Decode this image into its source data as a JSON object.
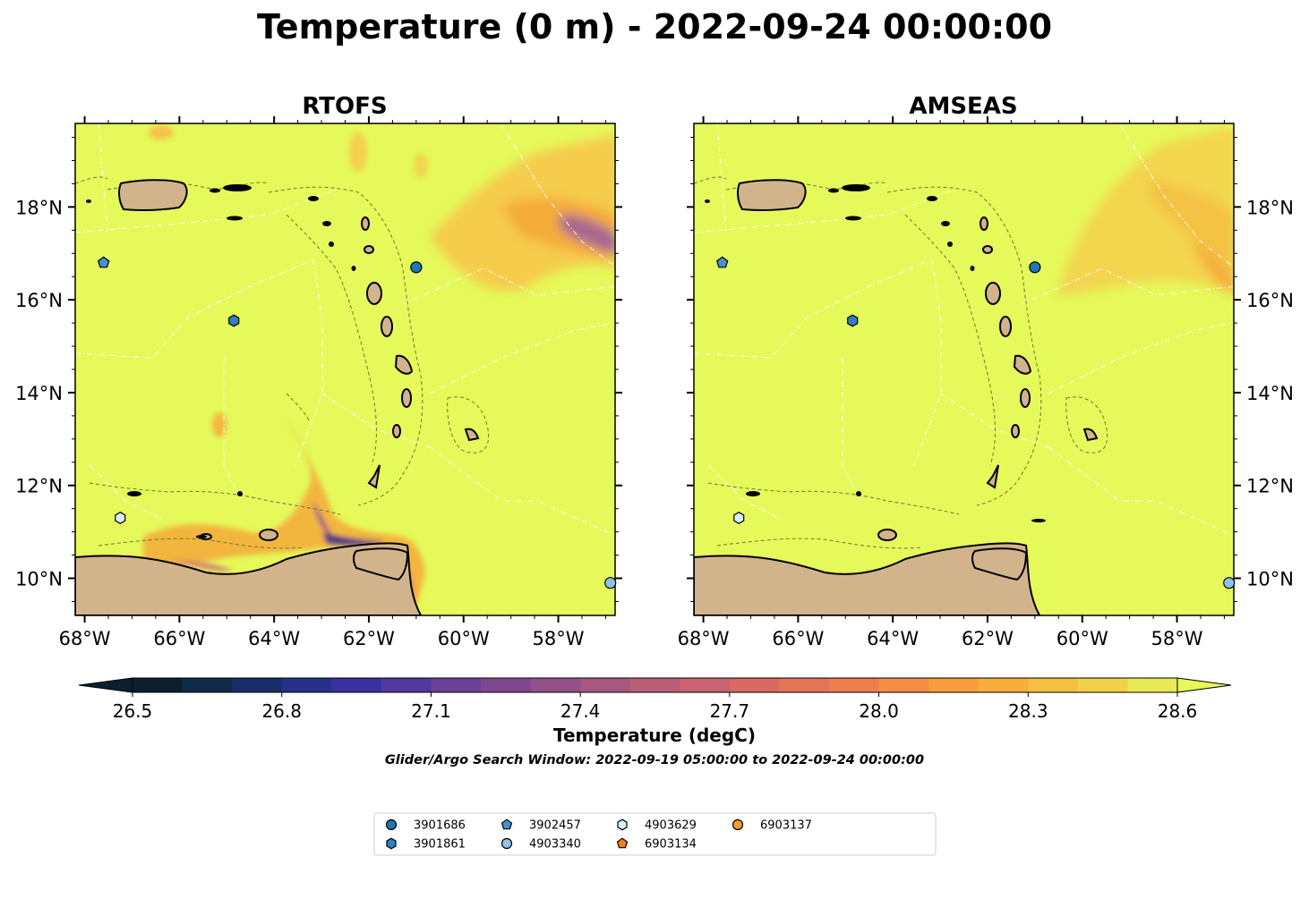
{
  "figure": {
    "title": "Temperature (0 m) - 2022-09-24 00:00:00",
    "search_window": "Glider/Argo Search Window: 2022-09-19 05:00:00 to 2022-09-24 00:00:00"
  },
  "panels": [
    {
      "title": "RTOFS"
    },
    {
      "title": "AMSEAS"
    }
  ],
  "axes": {
    "lon_labels": [
      "68°W",
      "66°W",
      "64°W",
      "62°W",
      "60°W",
      "58°W"
    ],
    "lat_labels": [
      "10°N",
      "12°N",
      "14°N",
      "16°N",
      "18°N"
    ],
    "lon_range": [
      -68.2,
      -56.8
    ],
    "lat_range": [
      9.2,
      19.8
    ]
  },
  "colorbar": {
    "label": "Temperature (degC)",
    "ticks": [
      "26.5",
      "26.8",
      "27.1",
      "27.4",
      "27.7",
      "28.0",
      "28.3",
      "28.6"
    ],
    "range": [
      26.5,
      28.6
    ],
    "extend": "both"
  },
  "legend": {
    "placement": "bottom-center",
    "entries": [
      {
        "id": "3901686",
        "marker": "circle",
        "color": "#1f77b4"
      },
      {
        "id": "3901861",
        "marker": "hexagon",
        "color": "#2f7fc1"
      },
      {
        "id": "3902457",
        "marker": "pentagon",
        "color": "#4a90d0"
      },
      {
        "id": "4903340",
        "marker": "circle",
        "color": "#8ec2ea"
      },
      {
        "id": "4903629",
        "marker": "hexagon",
        "color": "#d6ecfa"
      },
      {
        "id": "6903134",
        "marker": "pentagon",
        "color": "#f57f17"
      },
      {
        "id": "6903137",
        "marker": "circle",
        "color": "#ff9830"
      }
    ]
  },
  "observations": [
    {
      "id": "3901686",
      "lon": -61.0,
      "lat": 16.7
    },
    {
      "id": "3901861",
      "lon": -64.85,
      "lat": 15.55
    },
    {
      "id": "3902457",
      "lon": -67.6,
      "lat": 16.8
    },
    {
      "id": "4903340",
      "lon": -56.9,
      "lat": 9.9
    },
    {
      "id": "4903629",
      "lon": -67.25,
      "lat": 11.3
    }
  ],
  "colors": {
    "background_field": "#e5f95a",
    "land": "#d2b48c",
    "warm_anomaly": "#f6b13e",
    "cold_anomaly": "#6a3d9a"
  }
}
